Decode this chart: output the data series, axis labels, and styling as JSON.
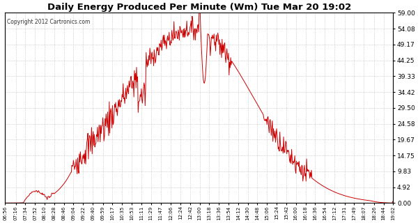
{
  "title": "Daily Energy Produced Per Minute (Wm) Tue Mar 20 19:02",
  "copyright": "Copyright 2012 Cartronics.com",
  "y_max": 59.0,
  "y_min": 0.0,
  "y_ticks": [
    0.0,
    4.92,
    9.83,
    14.75,
    19.67,
    24.58,
    29.5,
    34.42,
    39.33,
    44.25,
    49.17,
    54.08,
    59.0
  ],
  "line_color": "#cc0000",
  "bg_color": "#ffffff",
  "plot_bg_color": "#ffffff",
  "grid_color": "#aaaaaa",
  "title_color": "#000000",
  "x_labels": [
    "06:56",
    "07:16",
    "07:34",
    "07:52",
    "08:10",
    "08:28",
    "08:46",
    "09:04",
    "09:22",
    "09:40",
    "09:59",
    "10:17",
    "10:35",
    "10:53",
    "11:11",
    "11:29",
    "11:47",
    "12:06",
    "12:24",
    "12:42",
    "13:00",
    "13:18",
    "13:36",
    "13:54",
    "14:12",
    "14:30",
    "14:48",
    "15:06",
    "15:24",
    "15:42",
    "16:00",
    "16:18",
    "16:36",
    "16:54",
    "17:12",
    "17:31",
    "17:49",
    "18:07",
    "18:26",
    "18:44",
    "19:02"
  ]
}
